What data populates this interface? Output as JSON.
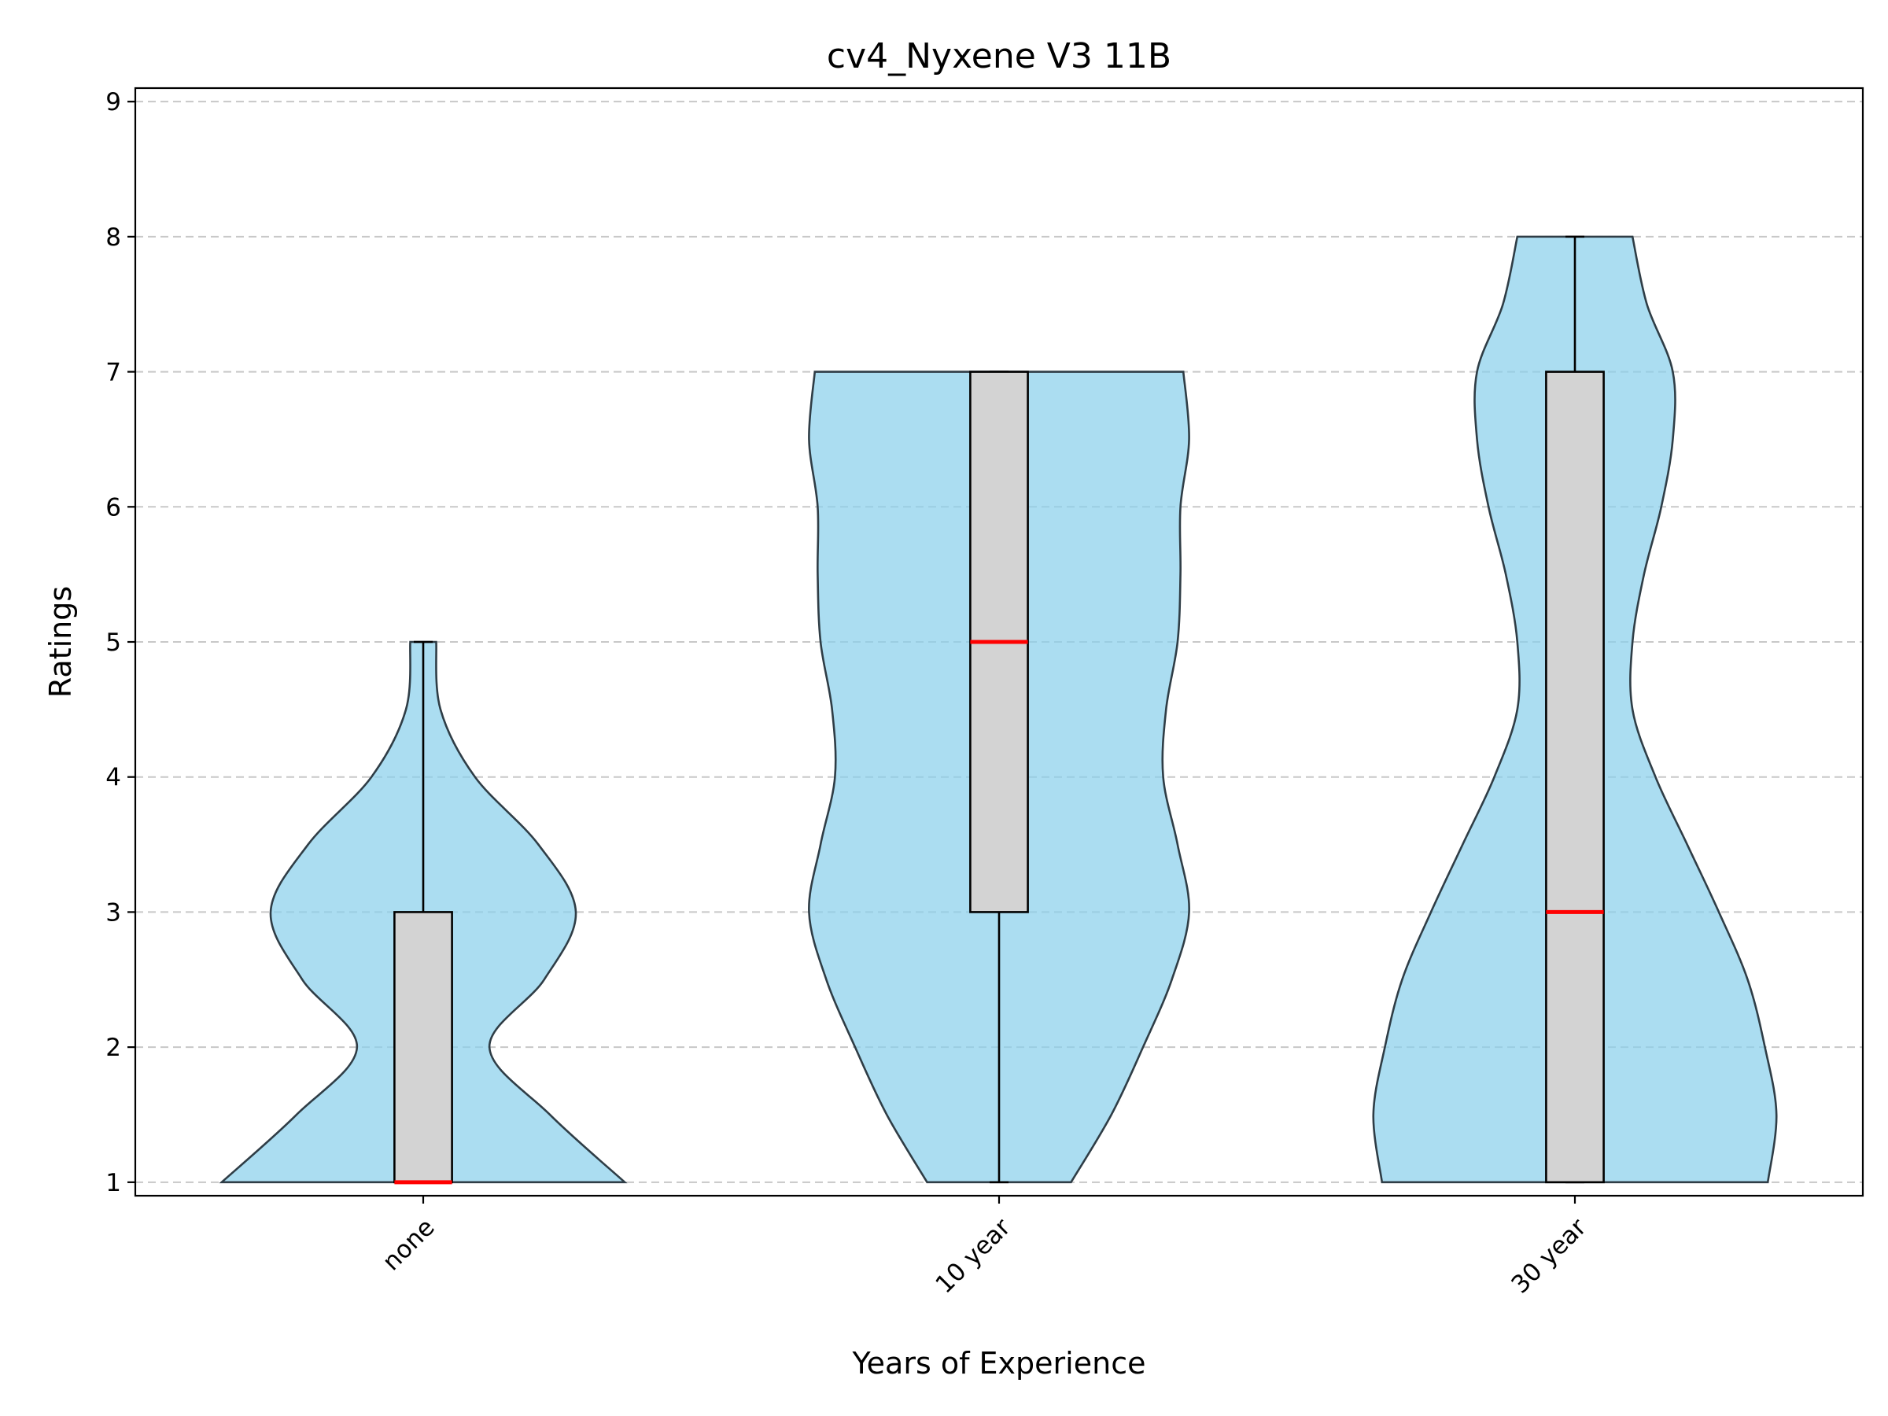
{
  "chart_data": {
    "type": "violin",
    "title": "cv4_Nyxene V3 11B",
    "xlabel": "Years of Experience",
    "ylabel": "Ratings",
    "categories": [
      "none",
      "10 year",
      "30 year"
    ],
    "ylim": [
      0.9,
      9.1
    ],
    "yticks": [
      1,
      2,
      3,
      4,
      5,
      6,
      7,
      8,
      9
    ],
    "grid": "y-dashed",
    "colors": {
      "violin": "#87ceeb",
      "box": "#d3d3d3",
      "median": "#ff0000",
      "outline": "#2f3d46"
    },
    "boxes": [
      {
        "category": "none",
        "min": 1,
        "q1": 1,
        "median": 1,
        "q3": 3,
        "max": 5
      },
      {
        "category": "10 year",
        "min": 1,
        "q1": 3,
        "median": 5,
        "q3": 7,
        "max": 7
      },
      {
        "category": "30 year",
        "min": 1,
        "q1": 1,
        "median": 3,
        "q3": 7,
        "max": 8
      }
    ],
    "violins": [
      {
        "category": "none",
        "y": [
          1,
          1.5,
          2,
          2.5,
          3,
          3.5,
          4,
          4.5,
          5
        ],
        "width": [
          0.7,
          0.44,
          0.23,
          0.42,
          0.53,
          0.4,
          0.18,
          0.06,
          0.045
        ]
      },
      {
        "category": "10 year",
        "y": [
          1,
          1.5,
          2,
          2.5,
          3,
          3.5,
          4,
          4.5,
          5,
          5.5,
          6,
          6.5,
          7
        ],
        "width": [
          0.25,
          0.39,
          0.5,
          0.6,
          0.66,
          0.62,
          0.57,
          0.58,
          0.62,
          0.63,
          0.63,
          0.66,
          0.64
        ]
      },
      {
        "category": "30 year",
        "y": [
          1,
          1.5,
          2,
          2.5,
          3,
          3.5,
          4,
          4.5,
          5,
          5.5,
          6,
          6.5,
          7,
          7.5,
          8
        ],
        "width": [
          0.67,
          0.7,
          0.66,
          0.6,
          0.5,
          0.39,
          0.28,
          0.2,
          0.2,
          0.24,
          0.3,
          0.34,
          0.34,
          0.25,
          0.2
        ]
      }
    ]
  }
}
